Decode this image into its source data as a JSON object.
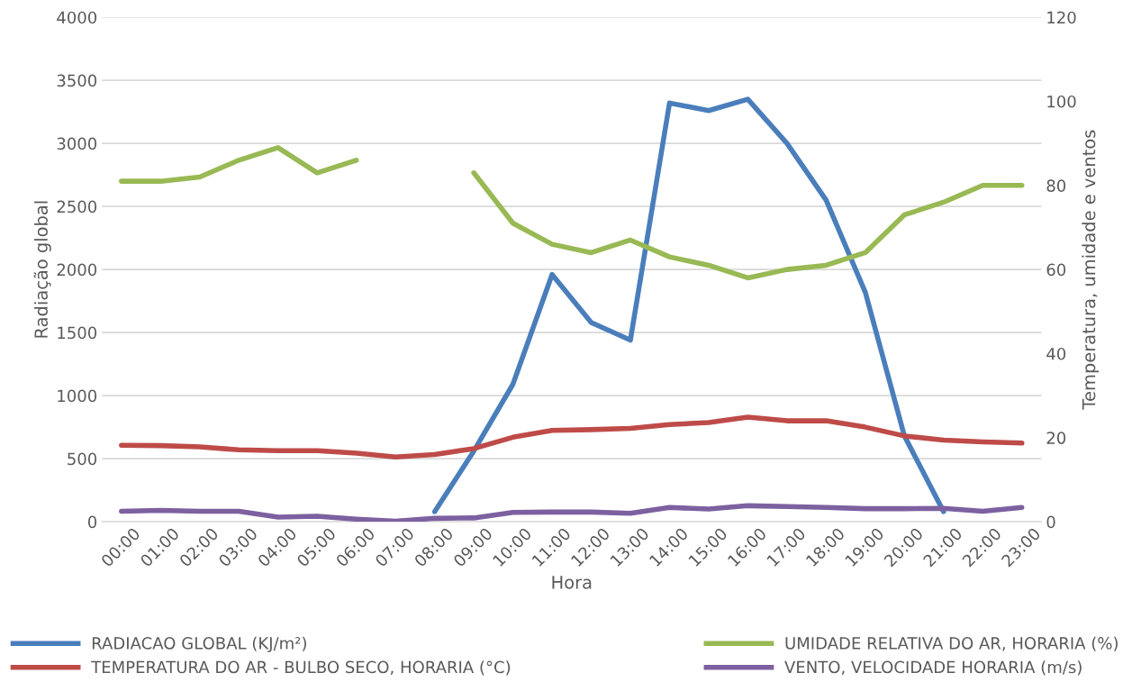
{
  "chart_data": {
    "type": "line",
    "xlabel": "Hora",
    "ylabel": "Radiação global",
    "y2label": "Temperatura, umidade e ventos",
    "categories": [
      "00:00",
      "01:00",
      "02:00",
      "03:00",
      "04:00",
      "05:00",
      "06:00",
      "07:00",
      "08:00",
      "09:00",
      "10:00",
      "11:00",
      "12:00",
      "13:00",
      "14:00",
      "15:00",
      "16:00",
      "17:00",
      "18:00",
      "19:00",
      "20:00",
      "21:00",
      "22:00",
      "23:00"
    ],
    "series": [
      {
        "name": "RADIACAO GLOBAL (KJ/m²)",
        "color": "#4a7ebb",
        "values": [
          null,
          null,
          null,
          null,
          null,
          null,
          null,
          null,
          80,
          560,
          1090,
          1960,
          1580,
          1440,
          3320,
          3260,
          3350,
          3000,
          2550,
          1820,
          680,
          80,
          null,
          null
        ]
      },
      {
        "name": "TEMPERATURA DO AR - BULBO SECO, HORARIA (°C)",
        "color": "#be4b48",
        "axis": "y2",
        "values": [
          18.2,
          18.1,
          17.8,
          17.1,
          16.9,
          16.9,
          16.3,
          15.4,
          16.0,
          17.4,
          20.1,
          21.7,
          21.9,
          22.2,
          23.1,
          23.6,
          24.9,
          24.0,
          24.0,
          22.5,
          20.4,
          19.4,
          19.0,
          18.7
        ]
      },
      {
        "name": "UMIDADE RELATIVA DO AR, HORARIA (%)",
        "color": "#98b954",
        "axis": "y2",
        "values": [
          81,
          81,
          82,
          86,
          89,
          83,
          86,
          null,
          null,
          83,
          71,
          66,
          64,
          67,
          63,
          61,
          58,
          60,
          61,
          64,
          73,
          76,
          80,
          80
        ]
      },
      {
        "name": "VENTO, VELOCIDADE HORARIA (m/s)",
        "color": "#7d60a0",
        "axis": "y2",
        "values": [
          2.5,
          2.7,
          2.5,
          2.5,
          1.1,
          1.3,
          0.6,
          0.1,
          0.8,
          0.9,
          2.2,
          2.3,
          2.3,
          2.0,
          3.4,
          3.0,
          3.8,
          3.6,
          3.4,
          3.1,
          3.1,
          3.2,
          2.5,
          3.4
        ]
      }
    ],
    "ylim": [
      0,
      4000
    ],
    "yticks": [
      0,
      500,
      1000,
      1500,
      2000,
      2500,
      3000,
      3500,
      4000
    ],
    "y2lim": [
      0,
      120
    ],
    "y2ticks": [
      0,
      20,
      40,
      60,
      80,
      100,
      120
    ],
    "grid": "y",
    "legend": "bottom",
    "marker": "none",
    "line_style": "solid"
  }
}
